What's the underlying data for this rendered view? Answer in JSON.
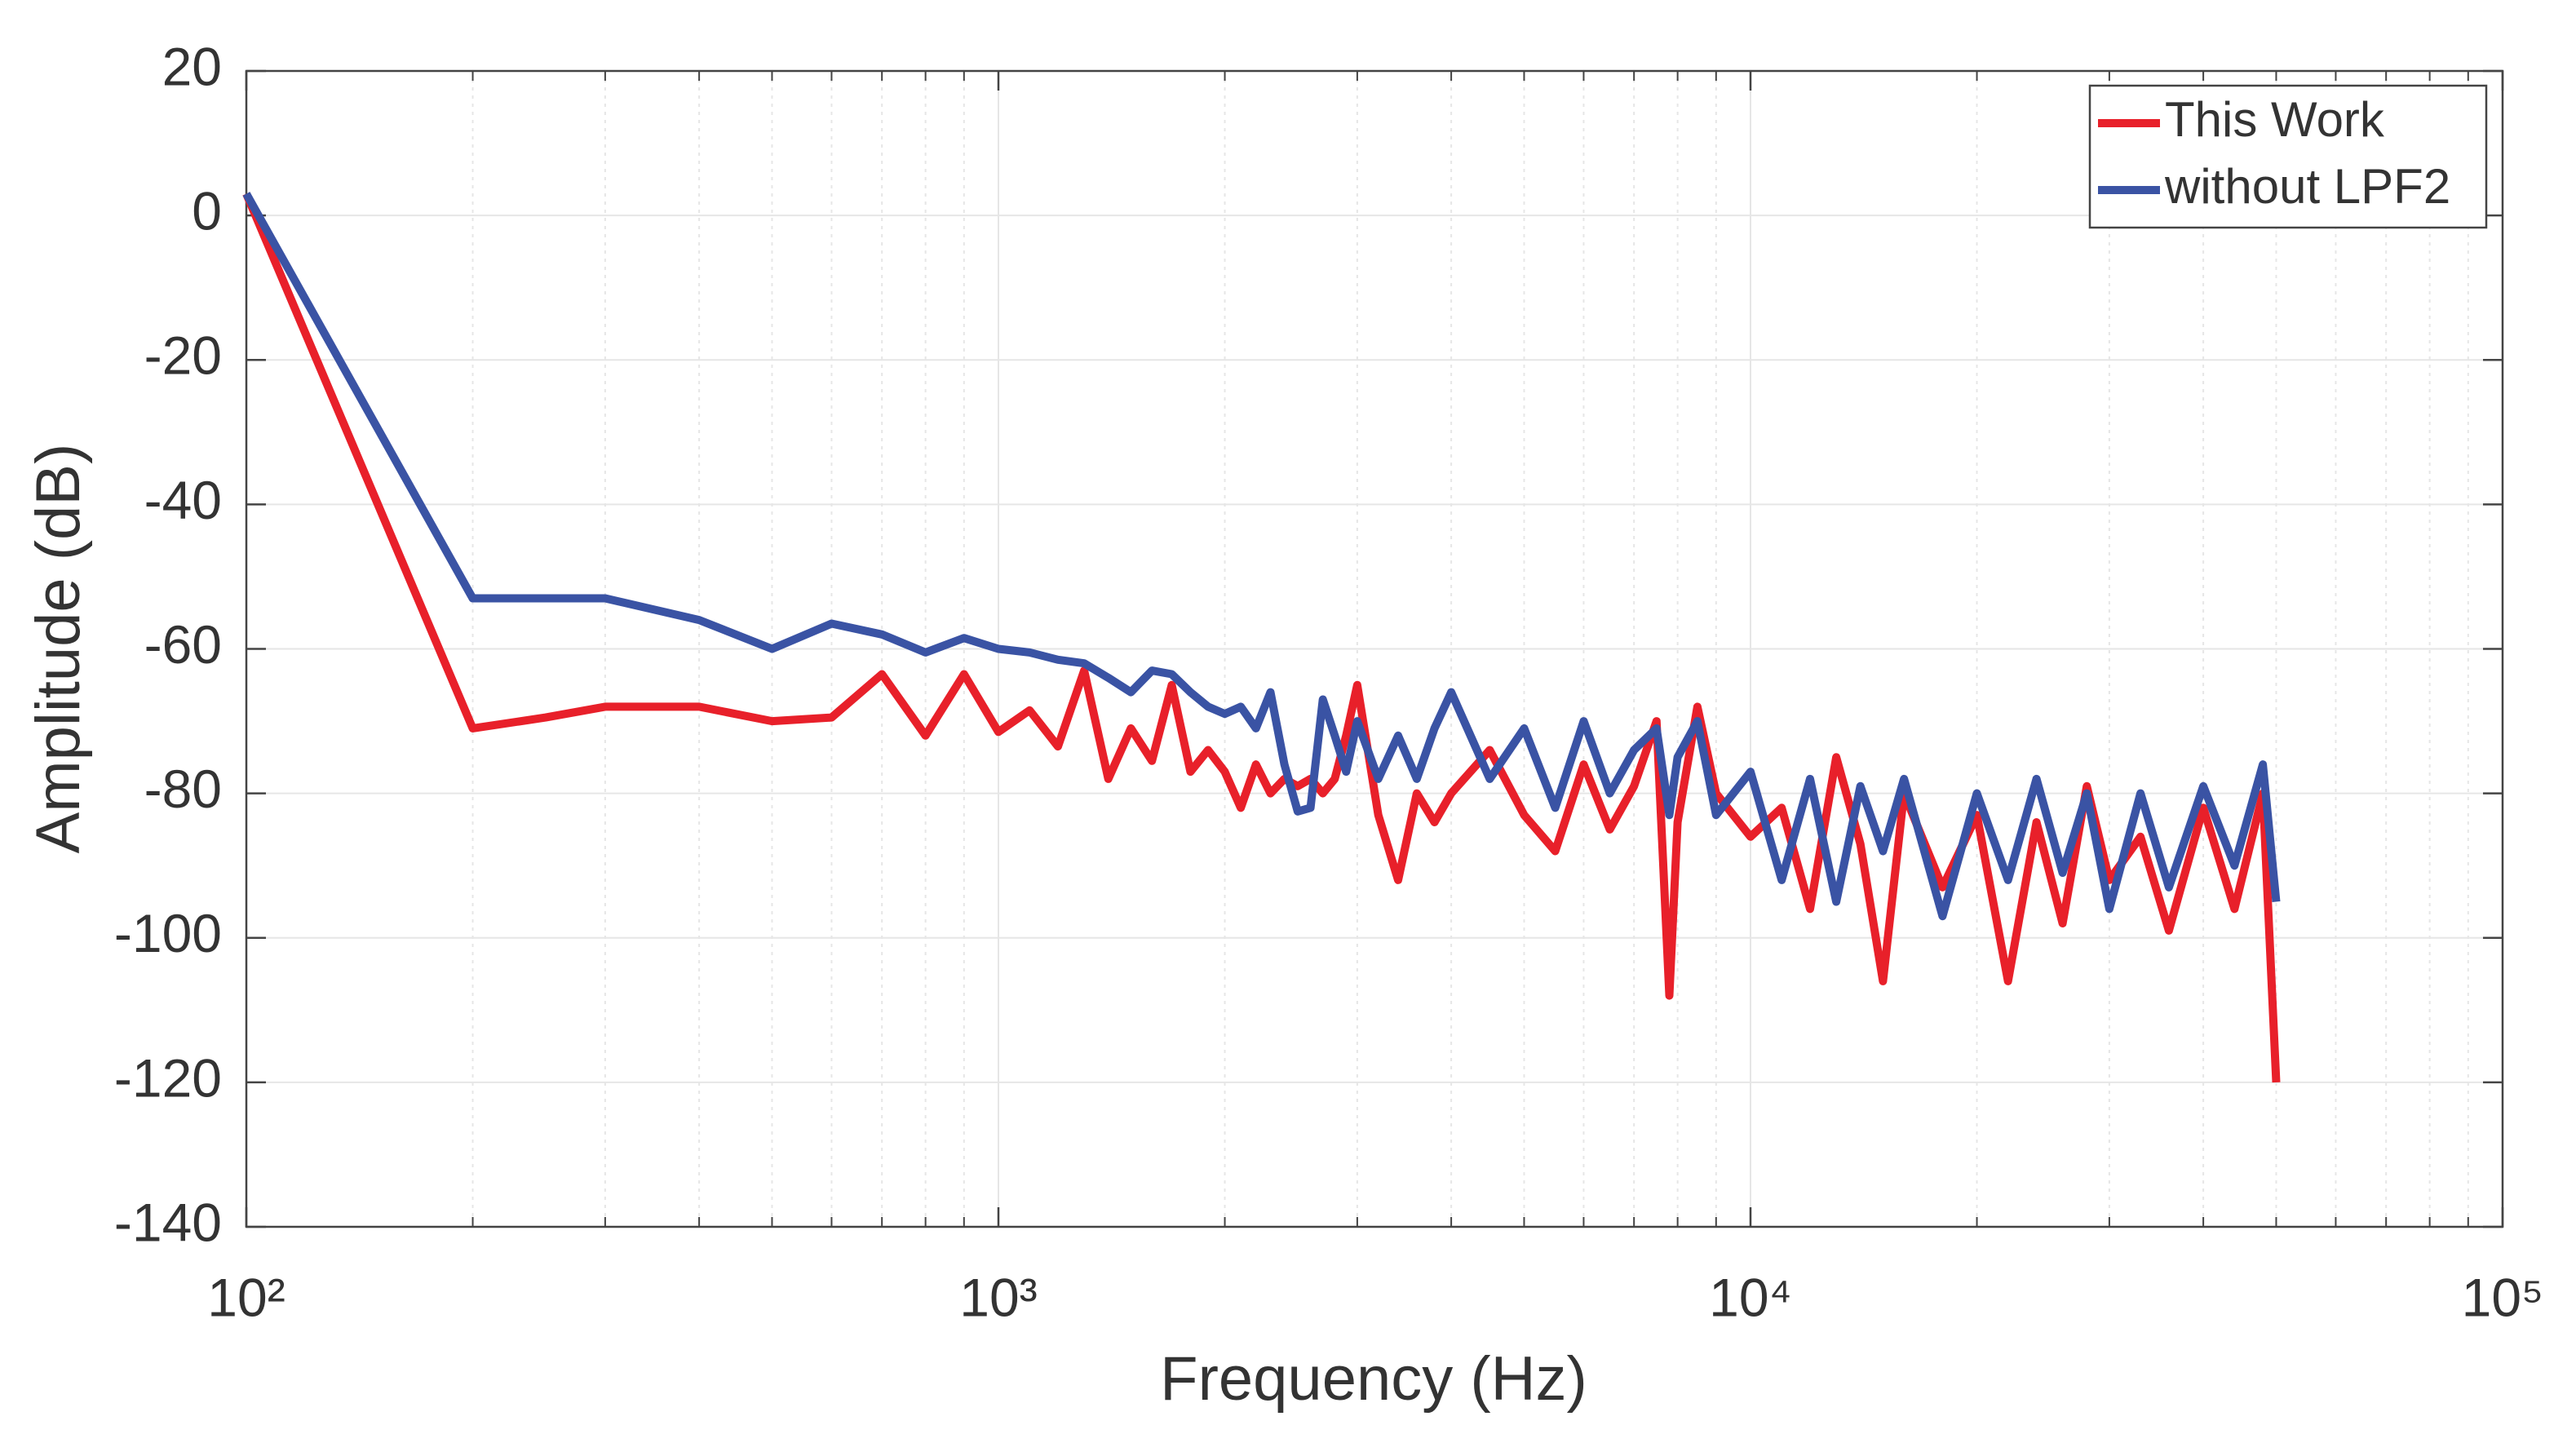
{
  "chart_data": {
    "type": "line",
    "xlabel": "Frequency (Hz)",
    "ylabel": "Amplitude (dB)",
    "xscale": "log",
    "xlim": [
      100,
      100000
    ],
    "xticks": [
      {
        "value": 100,
        "label": "10²"
      },
      {
        "value": 1000,
        "label": "10³"
      },
      {
        "value": 10000,
        "label": "10⁴"
      },
      {
        "value": 100000,
        "label": "10⁵"
      }
    ],
    "ylim": [
      -140,
      20
    ],
    "yticks": [
      -140,
      -120,
      -100,
      -80,
      -60,
      -40,
      -20,
      0,
      20
    ],
    "grid": true,
    "legend": "upper right",
    "x": [
      100,
      200,
      250,
      300,
      400,
      500,
      600,
      700,
      800,
      900,
      1000,
      1100,
      1200,
      1300,
      1400,
      1500,
      1600,
      1700,
      1800,
      1900,
      2000,
      2100,
      2200,
      2300,
      2400,
      2500,
      2600,
      2700,
      2800,
      2900,
      3000,
      3200,
      3400,
      3600,
      3800,
      4000,
      4500,
      5000,
      5500,
      6000,
      6500,
      7000,
      7500,
      7800,
      8000,
      8500,
      9000,
      10000,
      11000,
      12000,
      13000,
      14000,
      15000,
      16000,
      18000,
      20000,
      22000,
      24000,
      26000,
      28000,
      30000,
      33000,
      36000,
      40000,
      44000,
      48000,
      50000
    ],
    "series": [
      {
        "name": "This Work",
        "color": "#e8202a",
        "values": [
          3,
          -71,
          -69.5,
          -68,
          -68,
          -70,
          -69.5,
          -63.5,
          -72,
          -63.5,
          -71.5,
          -68.5,
          -73.5,
          -63,
          -78,
          -71,
          -75.5,
          -65,
          -77,
          -74,
          -77,
          -82,
          -76,
          -80,
          -78,
          -79,
          -78,
          -80,
          -78,
          -72,
          -65,
          -83,
          -92,
          -80,
          -84,
          -80,
          -74,
          -83,
          -88,
          -76,
          -85,
          -79,
          -70,
          -108,
          -84,
          -68,
          -80,
          -86,
          -82,
          -96,
          -75,
          -87,
          -106,
          -80,
          -93,
          -83,
          -106,
          -84,
          -98,
          -79,
          -92,
          -86,
          -99,
          -82,
          -96,
          -80,
          -120
        ]
      },
      {
        "name": "without LPF2",
        "color": "#3a53a4",
        "values": [
          3,
          -53,
          -53,
          -53,
          -56,
          -60,
          -56.5,
          -58,
          -60.5,
          -58.5,
          -60,
          -60.5,
          -61.5,
          -62,
          -64,
          -66,
          -63,
          -63.5,
          -66,
          -68,
          -69,
          -68,
          -71,
          -66,
          -76,
          -82.5,
          -82,
          -67,
          -72,
          -77,
          -70,
          -78,
          -72,
          -78,
          -71,
          -66,
          -78,
          -71,
          -82,
          -70,
          -80,
          -74,
          -71,
          -83,
          -75,
          -70,
          -83,
          -77,
          -92,
          -78,
          -95,
          -79,
          -88,
          -78,
          -97,
          -80,
          -92,
          -78,
          -91,
          -80,
          -96,
          -80,
          -93,
          -79,
          -90,
          -76,
          -95
        ]
      }
    ]
  }
}
